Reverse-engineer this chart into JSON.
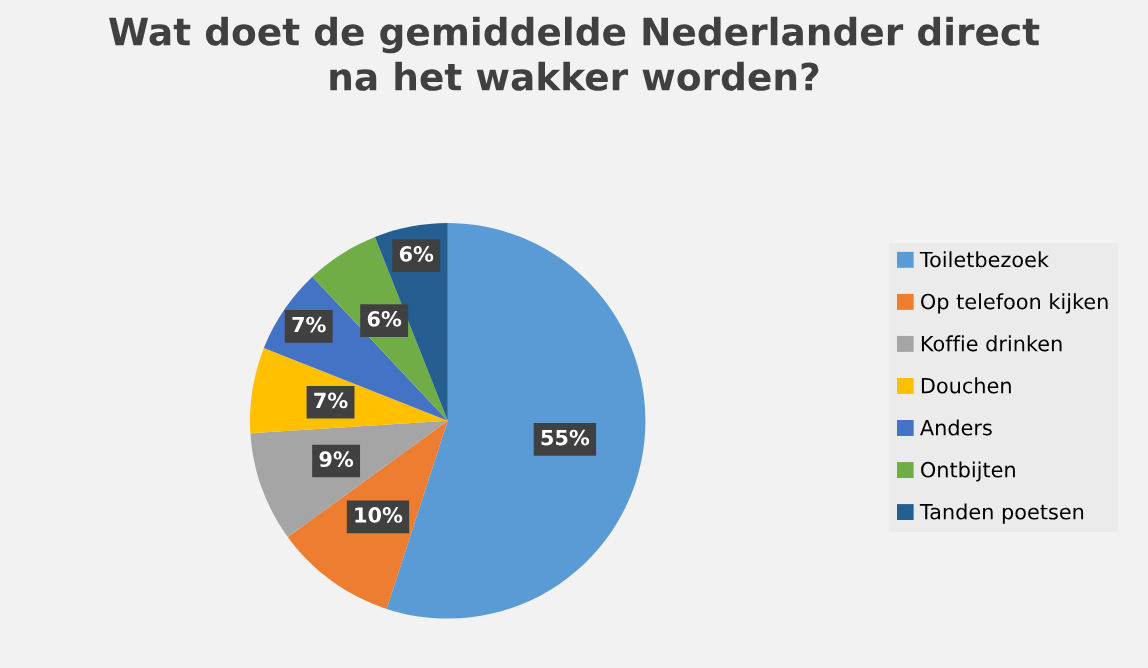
{
  "chart_data": {
    "type": "pie",
    "title": "Wat doet de gemiddelde Nederlander direct\nna het wakker worden?",
    "categories": [
      "Toiletbezoek",
      "Op telefoon kijken",
      "Koffie drinken",
      "Douchen",
      "Anders",
      "Ontbijten",
      "Tanden poetsen"
    ],
    "values": [
      55,
      10,
      9,
      7,
      7,
      6,
      6
    ],
    "colors": [
      "#5b9bd5",
      "#ed7d31",
      "#a5a5a5",
      "#ffc000",
      "#4472c4",
      "#70ad47",
      "#255e91"
    ],
    "value_labels": [
      "55%",
      "10%",
      "9%",
      "7%",
      "7%",
      "6%",
      "6%"
    ],
    "legend": "right"
  }
}
